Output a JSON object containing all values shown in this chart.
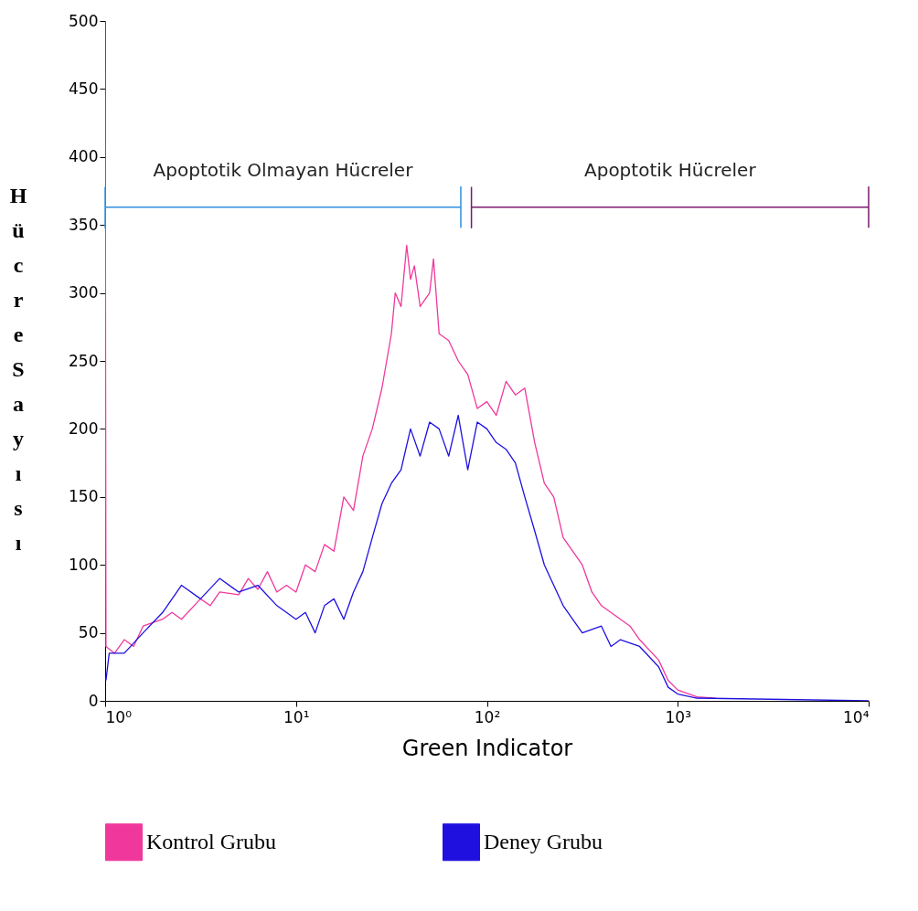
{
  "chart_data": {
    "type": "line",
    "xlabel": "Green Indicator",
    "ylabel": "Hücre Sayısı",
    "log": "x",
    "xlim": [
      1,
      10000
    ],
    "xticks": [
      {
        "value": 1,
        "label": "10⁰"
      },
      {
        "value": 10,
        "label": "10¹"
      },
      {
        "value": 100,
        "label": "10²"
      },
      {
        "value": 1000,
        "label": "10³"
      },
      {
        "value": 10000,
        "label": "10⁴"
      }
    ],
    "ylim": [
      0,
      500
    ],
    "yticks": [
      0,
      50,
      100,
      150,
      200,
      250,
      300,
      350,
      400,
      450,
      500
    ],
    "grid": false,
    "legend": "bottom",
    "series": [
      {
        "name": "Kontrol Grubu",
        "color": "#f0389c",
        "x": [
          1,
          1.01,
          1.12,
          1.26,
          1.41,
          1.58,
          2.0,
          2.24,
          2.51,
          3.16,
          3.55,
          3.98,
          5.01,
          5.62,
          6.31,
          7.08,
          7.94,
          8.91,
          10,
          11.2,
          12.6,
          14.1,
          15.8,
          17.8,
          20,
          22.4,
          25.1,
          28.2,
          31.6,
          33.1,
          35.5,
          38,
          39.8,
          41.7,
          44.7,
          50.1,
          52.5,
          56.2,
          63.1,
          70.8,
          79.4,
          89.1,
          100,
          112,
          126,
          141,
          158,
          178,
          200,
          224,
          251,
          316,
          355,
          398,
          501,
          562,
          631,
          794,
          891,
          1000,
          1259,
          1585
        ],
        "values": [
          500,
          40,
          35,
          45,
          40,
          55,
          60,
          65,
          60,
          75,
          70,
          80,
          78,
          90,
          82,
          95,
          80,
          85,
          80,
          100,
          95,
          115,
          110,
          150,
          140,
          180,
          200,
          230,
          270,
          300,
          290,
          335,
          310,
          320,
          290,
          300,
          325,
          270,
          265,
          250,
          240,
          215,
          220,
          210,
          235,
          225,
          230,
          190,
          160,
          150,
          120,
          100,
          80,
          70,
          60,
          55,
          45,
          30,
          15,
          8,
          3,
          2
        ]
      },
      {
        "name": "Deney Grubu",
        "color": "#1f10e0",
        "x": [
          1.01,
          1.05,
          1.26,
          1.58,
          2.0,
          2.51,
          3.16,
          3.98,
          5.01,
          6.31,
          7.94,
          10,
          11.2,
          12.6,
          14.1,
          15.8,
          17.8,
          20,
          22.4,
          25.1,
          28.2,
          31.6,
          35.5,
          39.8,
          44.7,
          50.1,
          56.2,
          63.1,
          70.8,
          79.4,
          89.1,
          100,
          112,
          126,
          141,
          158,
          178,
          200,
          224,
          251,
          316,
          398,
          447,
          501,
          631,
          794,
          891,
          1000,
          1259,
          10000
        ],
        "values": [
          15,
          35,
          35,
          50,
          65,
          85,
          75,
          90,
          80,
          85,
          70,
          60,
          65,
          50,
          70,
          75,
          60,
          80,
          95,
          120,
          145,
          160,
          170,
          200,
          180,
          205,
          200,
          180,
          210,
          170,
          205,
          200,
          190,
          185,
          175,
          150,
          125,
          100,
          85,
          70,
          50,
          55,
          40,
          45,
          40,
          25,
          10,
          5,
          2,
          0
        ]
      },
      {
        "name": "Apoptotik Olmayan Hücreler",
        "type": "line",
        "color": "#2f8fe0",
        "x": [
          1,
          1,
          1,
          73,
          73,
          73
        ],
        "values": [
          378,
          348,
          363,
          363,
          378,
          348
        ]
      },
      {
        "name": "Apoptotik Hücreler",
        "type": "line",
        "color": "#7a1a6e",
        "x": [
          83,
          83,
          83,
          10000,
          10000,
          10000
        ],
        "values": [
          378,
          348,
          363,
          363,
          378,
          348
        ]
      }
    ]
  }
}
